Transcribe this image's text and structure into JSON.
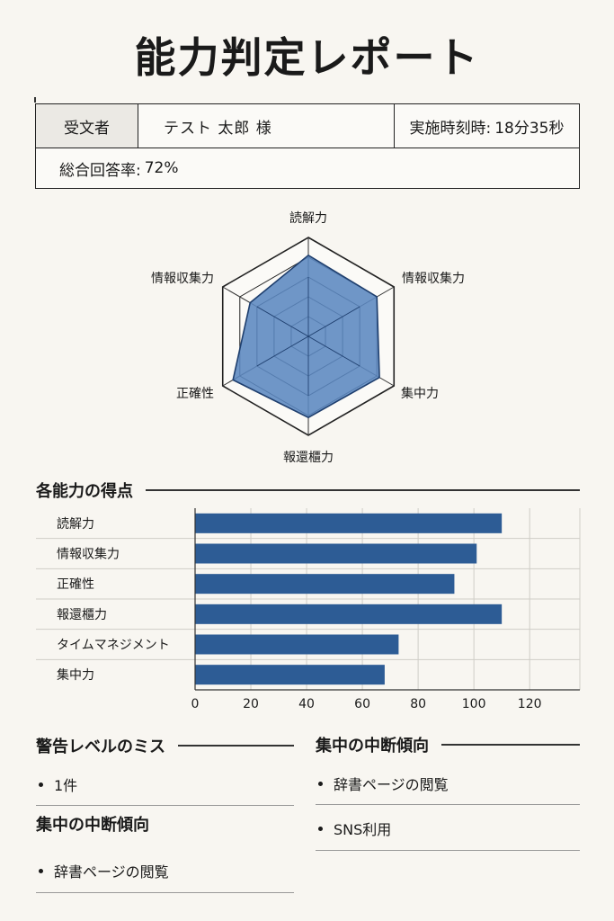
{
  "title": "能力判定レポート",
  "info": {
    "examinee_label": "受文者",
    "examinee_name": "テスト 太郎 様",
    "time_label": "実施時刻時:",
    "time_value": "18分35秒",
    "score_label": "総合回答率:",
    "score_value": "72%"
  },
  "colors": {
    "accent": "#2d5c95",
    "radar_fill": "#5b87c0"
  },
  "radar": {
    "axes": [
      "読解力",
      "情報収集力",
      "集中力",
      "報還櫃力",
      "正確性",
      "情報収集力"
    ],
    "values": [
      0.82,
      0.8,
      0.83,
      0.82,
      0.88,
      0.68
    ],
    "max": 1
  },
  "scores_section": {
    "title": "各能力の得点"
  },
  "chart_data": {
    "type": "bar",
    "orientation": "horizontal",
    "categories": [
      "読解力",
      "情報収集力",
      "正確性",
      "報還櫃力",
      "タイムマネジメント",
      "集中力"
    ],
    "values": [
      110,
      101,
      93,
      110,
      73,
      68
    ],
    "xlim": [
      0,
      138
    ],
    "xticks": [
      0,
      20,
      40,
      60,
      80,
      100,
      120
    ],
    "grid": true
  },
  "warnings": {
    "title": "警告レベルのミス",
    "items": [
      "1件"
    ]
  },
  "focus_left": {
    "title": "集中の中断傾向",
    "items": [
      "辞書ページの閲覧"
    ]
  },
  "focus_right": {
    "title": "集中の中断傾向",
    "items": [
      "辞書ページの閲覧",
      "SNS利用"
    ]
  }
}
